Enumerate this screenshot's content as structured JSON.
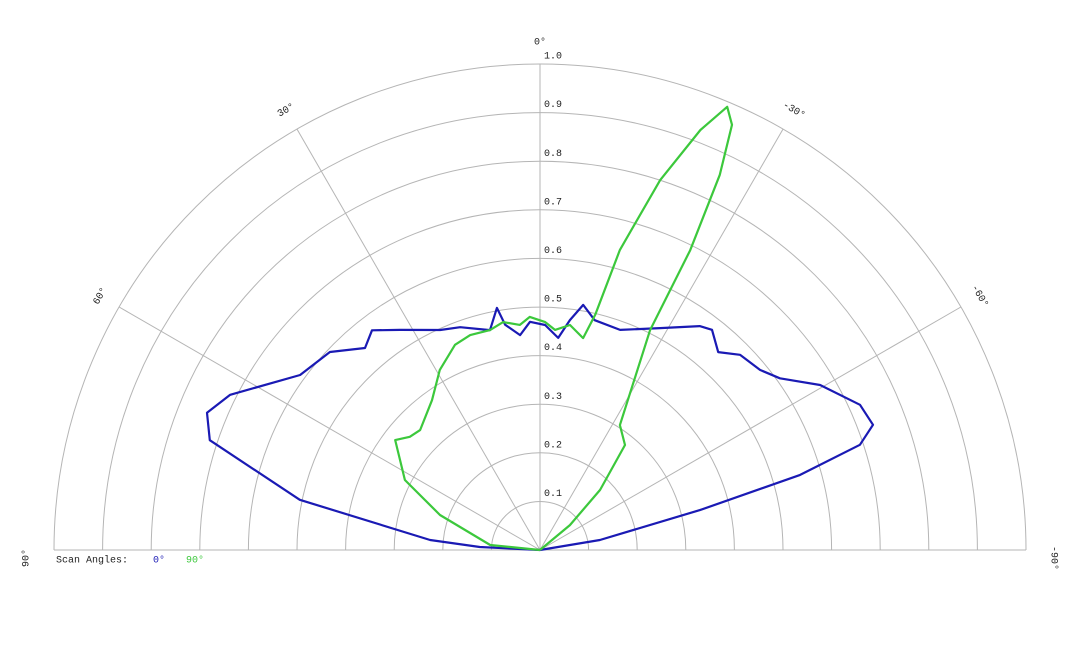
{
  "chart_data": {
    "type": "polar",
    "legend_title": "Scan Angles:",
    "rlim": [
      0,
      1
    ],
    "rticks": [
      0.1,
      0.2,
      0.3,
      0.4,
      0.5,
      0.6,
      0.7,
      0.8,
      0.9,
      {
        "value": 1,
        "label": "1.0"
      }
    ],
    "thetalim": [
      90,
      -90
    ],
    "thetaticks": [
      {
        "value": 90,
        "label": "90°"
      },
      {
        "value": 60,
        "label": "60°"
      },
      {
        "value": 30,
        "label": "30°"
      },
      {
        "value": 0,
        "label": "0°"
      },
      {
        "value": -30,
        "label": "-30°"
      },
      {
        "value": -60,
        "label": "-60°"
      },
      {
        "value": -90,
        "label": "-90°"
      }
    ],
    "grid": true,
    "legend": "bottom-left",
    "series": [
      {
        "name": "0°",
        "color": "#1a1ab4",
        "theta": [
          90,
          87.1,
          84.8,
          78.2,
          71.6,
          67.6,
          63.4,
          53.9,
          46.7,
          40.9,
          37.4,
          32.5,
          24.4,
          19.7,
          12.8,
          10.1,
          8.8,
          5.3,
          2.5,
          -1.3,
          -4.9,
          -7.4,
          -10.0,
          -13.4,
          -20.0,
          -28.4,
          -35.5,
          -38.0,
          -42.0,
          -45.7,
          -50.7,
          -54.4,
          -59.5,
          -65.6,
          -69.4,
          -71.8,
          -73.9,
          -76.0,
          -80.5,
          -90
        ],
        "values": [
          0,
          0.124,
          0.227,
          0.505,
          0.716,
          0.741,
          0.713,
          0.611,
          0.594,
          0.55,
          0.569,
          0.537,
          0.497,
          0.487,
          0.464,
          0.506,
          0.469,
          0.444,
          0.47,
          0.463,
          0.438,
          0.477,
          0.512,
          0.486,
          0.482,
          0.519,
          0.566,
          0.575,
          0.548,
          0.575,
          0.585,
          0.607,
          0.669,
          0.723,
          0.732,
          0.693,
          0.557,
          0.339,
          0.125,
          0
        ]
      },
      {
        "name": "90°",
        "color": "#3cc83c",
        "theta": [
          90,
          84.3,
          70.7,
          62.6,
          52.8,
          49.0,
          45.0,
          35.8,
          29.1,
          22.5,
          18.0,
          12.8,
          9.2,
          5.1,
          2.5,
          -1.3,
          -3.9,
          -7.6,
          -11.5,
          -13.2,
          -14.9,
          -18.0,
          -20.9,
          -22.9,
          -24.3,
          -25.6,
          -26.6,
          -26.6,
          -32.6,
          -39.0,
          -45.0,
          -50.2,
          -60
        ],
        "values": [
          0,
          0.103,
          0.218,
          0.313,
          0.374,
          0.355,
          0.349,
          0.38,
          0.424,
          0.457,
          0.465,
          0.464,
          0.475,
          0.465,
          0.48,
          0.469,
          0.454,
          0.467,
          0.445,
          0.497,
          0.639,
          0.8,
          0.925,
          0.99,
          0.96,
          0.856,
          0.69,
          0.506,
          0.305,
          0.278,
          0.175,
          0.08,
          0
        ]
      }
    ]
  }
}
